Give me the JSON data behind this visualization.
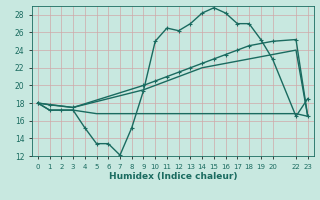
{
  "xlabel": "Humidex (Indice chaleur)",
  "xlim": [
    -0.5,
    23.5
  ],
  "ylim": [
    12,
    29
  ],
  "yticks": [
    12,
    14,
    16,
    18,
    20,
    22,
    24,
    26,
    28
  ],
  "xticks": [
    0,
    1,
    2,
    3,
    4,
    5,
    6,
    7,
    8,
    9,
    10,
    11,
    12,
    13,
    14,
    15,
    16,
    17,
    18,
    19,
    20,
    22,
    23
  ],
  "xtick_labels": [
    "0",
    "1",
    "2",
    "3",
    "4",
    "5",
    "6",
    "7",
    "8",
    "9",
    "10",
    "11",
    "12",
    "13",
    "14",
    "15",
    "16",
    "17",
    "18",
    "19",
    "20",
    "22",
    "23"
  ],
  "bg_color": "#c8e8e0",
  "line_color": "#1a6b60",
  "grid_color": "#b8d8d0",
  "line1_x": [
    0,
    1,
    2,
    3,
    4,
    5,
    6,
    7,
    8,
    9,
    10,
    11,
    12,
    13,
    14,
    15,
    16,
    17,
    18,
    19,
    20,
    22,
    23
  ],
  "line1_y": [
    18,
    17.2,
    17.2,
    17.2,
    15.2,
    13.4,
    13.4,
    12.1,
    15.2,
    19.4,
    25.0,
    26.5,
    26.2,
    27.0,
    28.2,
    28.8,
    28.2,
    27.0,
    27.0,
    25.2,
    23.0,
    16.5,
    18.5
  ],
  "line2_x": [
    0,
    1,
    3,
    9,
    10,
    11,
    12,
    13,
    14,
    15,
    16,
    17,
    18,
    20,
    22,
    23
  ],
  "line2_y": [
    18,
    17.8,
    17.5,
    20.0,
    20.5,
    21.0,
    21.5,
    22.0,
    22.5,
    23.0,
    23.5,
    24.0,
    24.5,
    25.0,
    25.2,
    16.5
  ],
  "line3_x": [
    0,
    3,
    9,
    14,
    20,
    22,
    23
  ],
  "line3_y": [
    18,
    17.5,
    19.5,
    22.0,
    23.5,
    24.0,
    16.5
  ],
  "line4_x": [
    0,
    1,
    3,
    4,
    5,
    6,
    7,
    8,
    9,
    10,
    11,
    12,
    13,
    14,
    15,
    16,
    17,
    18,
    19,
    20,
    22,
    23
  ],
  "line4_y": [
    18,
    17.2,
    17.2,
    17.0,
    16.8,
    16.8,
    16.8,
    16.8,
    16.8,
    16.8,
    16.8,
    16.8,
    16.8,
    16.8,
    16.8,
    16.8,
    16.8,
    16.8,
    16.8,
    16.8,
    16.8,
    16.5
  ]
}
